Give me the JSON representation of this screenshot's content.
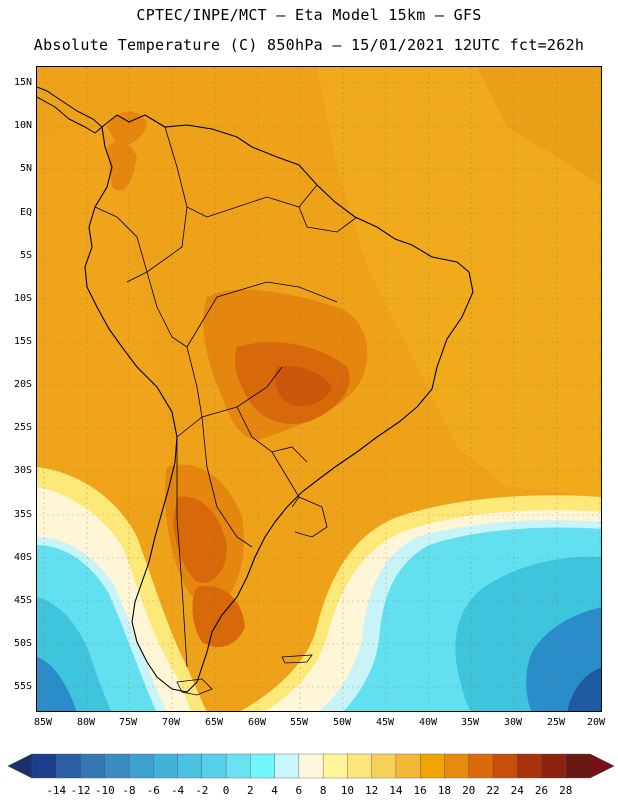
{
  "header": {
    "line1": "CPTEC/INPE/MCT –  Eta Model 15km – GFS",
    "line2": "Absolute Temperature (C) 850hPa – 15/01/2021 12UTC fct=262h"
  },
  "map": {
    "region": "South America",
    "lat_ticks": [
      "15N",
      "10N",
      "5N",
      "EQ",
      "5S",
      "10S",
      "15S",
      "20S",
      "25S",
      "30S",
      "35S",
      "40S",
      "45S",
      "50S",
      "55S"
    ],
    "lon_ticks": [
      "85W",
      "80W",
      "75W",
      "70W",
      "65W",
      "60W",
      "55W",
      "50W",
      "45W",
      "40W",
      "35W",
      "30W",
      "25W",
      "20W"
    ],
    "colors": {
      "background_warm": "#f0a800",
      "mid_warm": "#e88a10",
      "hot": "#d86a0a",
      "hotter": "#c9520a",
      "cool_yellow": "#fce97a",
      "pale": "#fff6d8",
      "pale_cyan": "#c8f4f8",
      "cyan": "#63e0f0",
      "teal": "#3ec4dc",
      "blue": "#2a8cc8",
      "deep_blue": "#1d5aa0"
    }
  },
  "legend": {
    "values": [
      "-14",
      "-12",
      "-10",
      "-8",
      "-6",
      "-4",
      "-2",
      "0",
      "2",
      "4",
      "6",
      "8",
      "10",
      "12",
      "14",
      "16",
      "18",
      "20",
      "22",
      "24",
      "26",
      "28"
    ],
    "colors": [
      "#1c3c8c",
      "#2a5fa6",
      "#3378b4",
      "#3a8cc2",
      "#3ea0ce",
      "#42b2d8",
      "#4ac2e2",
      "#58d0ea",
      "#6ae2f2",
      "#70f6fc",
      "#c8f6fa",
      "#fff8dc",
      "#fff59a",
      "#fde67c",
      "#f7d05a",
      "#f2b83a",
      "#f0a400",
      "#e88a10",
      "#dc6a0a",
      "#c84e0c",
      "#a8320c",
      "#8a220e",
      "#6a1812"
    ],
    "under_color": "#1a2f6e",
    "over_color": "#7a0f1a"
  }
}
